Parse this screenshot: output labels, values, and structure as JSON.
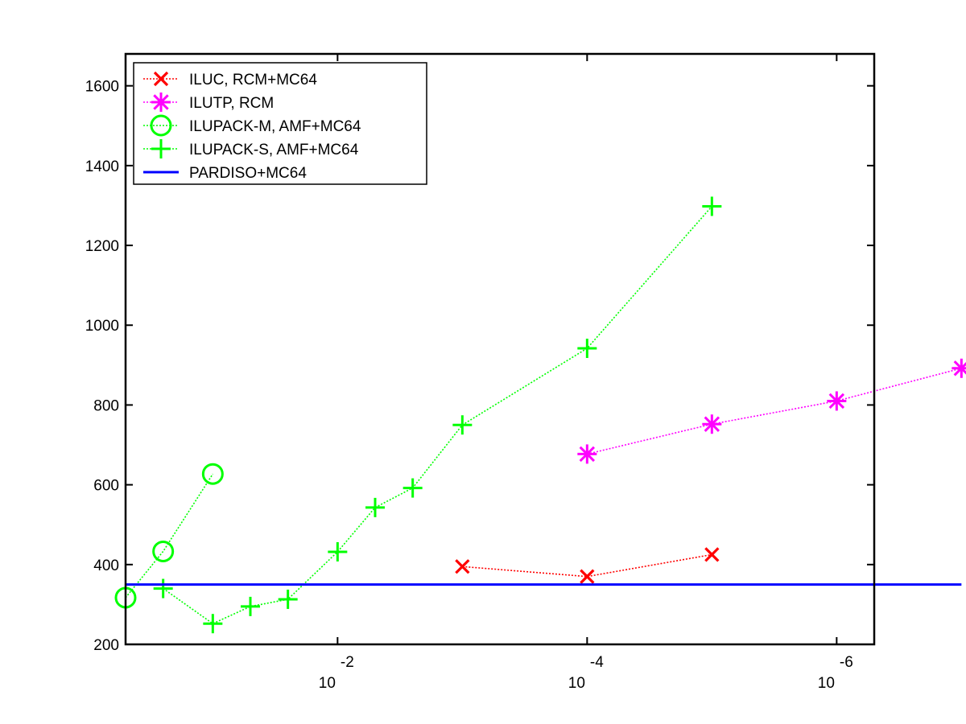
{
  "chart_data": {
    "type": "line",
    "x_scale": "log",
    "x_axis_reversed": true,
    "xlim": [
      0.5,
      5e-07
    ],
    "ylim": [
      200,
      1680
    ],
    "grid": false,
    "legend_placement": "top-left",
    "x_ticks": [
      {
        "value": 0.01,
        "base": "10",
        "exponent": "-2"
      },
      {
        "value": 0.0001,
        "base": "10",
        "exponent": "-4"
      },
      {
        "value": 1e-06,
        "base": "10",
        "exponent": "-6"
      }
    ],
    "y_ticks": [
      200,
      400,
      600,
      800,
      1000,
      1200,
      1400,
      1600
    ],
    "y_tick_labels": [
      "200",
      "400",
      "600",
      "800",
      "1000",
      "1200",
      "1400",
      "1600"
    ],
    "series": [
      {
        "name": "ILUC, RCM+MC64",
        "color": "#ff0000",
        "marker": "x",
        "line_style": "dotted",
        "x": [
          0.001,
          0.0001,
          1e-05
        ],
        "y": [
          395,
          370,
          425
        ]
      },
      {
        "name": "ILUTP, RCM",
        "color": "#ff00ff",
        "marker": "asterisk",
        "line_style": "dotted",
        "x": [
          0.0001,
          1e-05,
          1e-06,
          1e-07
        ],
        "y": [
          677,
          752,
          810,
          892
        ]
      },
      {
        "name": "ILUPACK-M, AMF+MC64",
        "color": "#00ff00",
        "marker": "circle",
        "line_style": "dotted",
        "x": [
          0.5,
          0.25,
          0.1
        ],
        "y": [
          317,
          433,
          627
        ]
      },
      {
        "name": "ILUPACK-S, AMF+MC64",
        "color": "#00ff00",
        "marker": "plus",
        "line_style": "dotted",
        "x": [
          0.25,
          0.1,
          0.05,
          0.025,
          0.01,
          0.005,
          0.0025,
          0.001,
          0.0001,
          1e-05
        ],
        "y": [
          340,
          252,
          295,
          313,
          432,
          543,
          592,
          750,
          942,
          1298
        ]
      },
      {
        "name": "PARDISO+MC64",
        "color": "#0000ff",
        "marker": "none",
        "line_style": "solid",
        "x": [
          0.5,
          1e-07
        ],
        "y": [
          350,
          350
        ]
      }
    ]
  }
}
